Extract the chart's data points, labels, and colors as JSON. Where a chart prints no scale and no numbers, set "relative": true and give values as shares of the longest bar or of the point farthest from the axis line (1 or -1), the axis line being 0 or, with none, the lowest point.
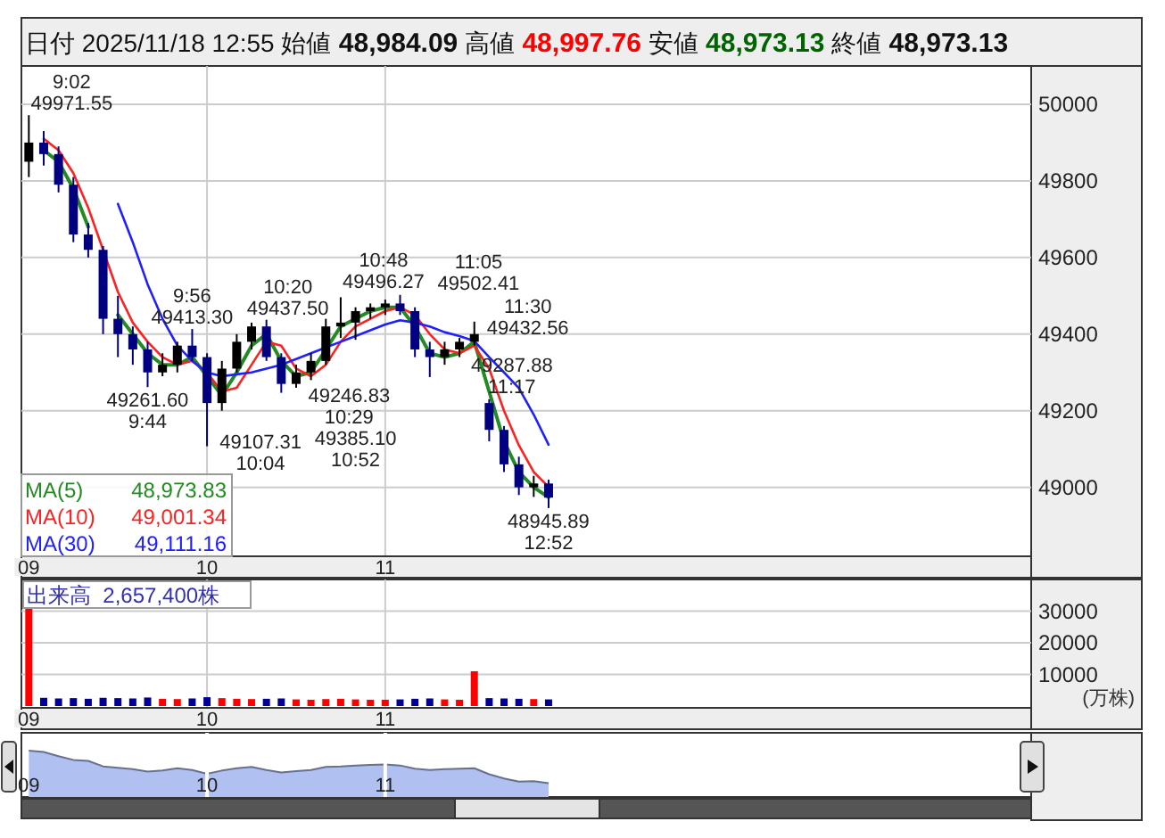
{
  "chart_data": [
    {
      "type": "candlestick",
      "title": "日付 2025/11/18 12:55 始値 48,984.09 高値 48,997.76 安値 48,973.13 終値 48,973.13",
      "categories": [
        "09",
        null,
        null,
        null,
        null,
        null,
        null,
        null,
        null,
        null,
        null,
        null,
        "10",
        null,
        null,
        null,
        null,
        null,
        null,
        null,
        null,
        null,
        null,
        null,
        "11",
        null,
        null,
        null,
        null,
        null,
        null,
        null,
        null,
        null,
        null,
        null,
        null,
        null,
        null,
        null,
        null,
        null,
        null,
        null,
        null,
        null,
        null,
        null,
        null,
        null,
        null,
        null,
        null,
        null,
        null,
        null,
        null,
        null,
        null,
        null,
        null,
        null,
        null,
        null,
        null,
        null,
        null,
        null
      ],
      "ohlc": [
        [
          49850,
          49971.55,
          49810,
          49900
        ],
        [
          49900,
          49930,
          49840,
          49870
        ],
        [
          49870,
          49890,
          49770,
          49790
        ],
        [
          49790,
          49810,
          49640,
          49660
        ],
        [
          49660,
          49690,
          49600,
          49620
        ],
        [
          49620,
          49630,
          49400,
          49440
        ],
        [
          49440,
          49500,
          49340,
          49400
        ],
        [
          49400,
          49420,
          49320,
          49360
        ],
        [
          49360,
          49380,
          49261.6,
          49300
        ],
        [
          49300,
          49350,
          49290,
          49320
        ],
        [
          49320,
          49380,
          49300,
          49370
        ],
        [
          49370,
          49413.3,
          49330,
          49340
        ],
        [
          49340,
          49350,
          49107.31,
          49220
        ],
        [
          49220,
          49330,
          49200,
          49310
        ],
        [
          49310,
          49400,
          49300,
          49380
        ],
        [
          49380,
          49430,
          49360,
          49420
        ],
        [
          49420,
          49437.5,
          49330,
          49340
        ],
        [
          49340,
          49350,
          49246.83,
          49270
        ],
        [
          49270,
          49320,
          49260,
          49300
        ],
        [
          49300,
          49350,
          49280,
          49330
        ],
        [
          49330,
          49440,
          49320,
          49420
        ],
        [
          49420,
          49496.27,
          49390,
          49430
        ],
        [
          49430,
          49470,
          49385.1,
          49460
        ],
        [
          49460,
          49480,
          49440,
          49470
        ],
        [
          49470,
          49490,
          49450,
          49480
        ],
        [
          49480,
          49502.41,
          49450,
          49460
        ],
        [
          49460,
          49470,
          49340,
          49360
        ],
        [
          49360,
          49380,
          49287.88,
          49340
        ],
        [
          49340,
          49380,
          49320,
          49360
        ],
        [
          49360,
          49390,
          49340,
          49380
        ],
        [
          49380,
          49432.56,
          49370,
          49400
        ],
        [
          49220,
          49230,
          49120,
          49150
        ],
        [
          49150,
          49160,
          49040,
          49060
        ],
        [
          49060,
          49080,
          48980,
          49000
        ],
        [
          49000,
          49030,
          48975,
          49010
        ],
        [
          49010,
          49020,
          48945.89,
          48973.13
        ],
        null,
        null,
        null,
        null,
        null,
        null,
        null,
        null,
        null,
        null,
        null,
        null,
        null,
        null,
        null,
        null,
        null,
        null,
        null,
        null,
        null,
        null,
        null,
        null,
        null,
        null,
        null,
        null,
        null,
        null,
        null,
        null
      ],
      "series": [
        {
          "type": "line",
          "name": "MA(5)  48,973.83",
          "color": "#228b22",
          "values": [
            null,
            49880,
            49850,
            49780,
            49680,
            null,
            49450,
            49400,
            49350,
            49320,
            49320,
            49340,
            49290,
            49240,
            49300,
            49370,
            49400,
            49330,
            49290,
            49300,
            49360,
            49420,
            49440,
            49460,
            49470,
            49470,
            49420,
            49350,
            49340,
            49350,
            49380,
            49250,
            49120,
            49040,
            49000,
            48973.83,
            null,
            null,
            null,
            null,
            null,
            null,
            null,
            null,
            null,
            null,
            null,
            null,
            null,
            null,
            null,
            null,
            null,
            null,
            null,
            null,
            null,
            null,
            null,
            null,
            null,
            null,
            null,
            null,
            null,
            null,
            null,
            null
          ]
        },
        {
          "type": "line",
          "name": "MA(10)  49,001.34",
          "color": "#ff2020",
          "values": [
            null,
            49910,
            49880,
            49820,
            49730,
            49620,
            49510,
            49430,
            49380,
            49340,
            49320,
            49330,
            49300,
            49250,
            49260,
            49320,
            49380,
            49370,
            49310,
            49290,
            49320,
            49380,
            49420,
            49440,
            49460,
            49470,
            49450,
            49400,
            49360,
            49350,
            49370,
            49310,
            49200,
            49110,
            49040,
            49001.34,
            null,
            null,
            null,
            null,
            null,
            null,
            null,
            null,
            null,
            null,
            null,
            null,
            null,
            null,
            null,
            null,
            null,
            null,
            null,
            null,
            null,
            null,
            null,
            null,
            null,
            null,
            null,
            null,
            null,
            null,
            null,
            null
          ]
        },
        {
          "type": "line",
          "name": "MA(30)  49,111.16",
          "color": "#2020ff",
          "values": [
            null,
            null,
            null,
            null,
            null,
            null,
            49740,
            49640,
            49530,
            49440,
            49370,
            49330,
            49300,
            49290,
            49295,
            49300,
            49310,
            49320,
            49335,
            49350,
            49365,
            49380,
            49395,
            49410,
            49425,
            49436,
            49430,
            49420,
            49405,
            49395,
            49382,
            49340,
            49300,
            49259,
            49190,
            49111.16,
            null,
            null,
            null,
            null,
            null,
            null,
            null,
            null,
            null,
            null,
            null,
            null,
            null,
            null,
            null,
            null,
            null,
            null,
            null,
            null,
            null,
            null,
            null,
            null,
            null,
            null,
            null,
            null,
            null,
            null,
            null,
            null
          ]
        }
      ],
      "ylim": [
        48820,
        50100
      ],
      "yticks": [
        49000,
        49200,
        49400,
        49600,
        49800,
        50000
      ],
      "grid": true,
      "annotations": [
        "9:02 49971.55",
        "49261.60 9:44",
        "9:56 49413.30",
        "49107.31 10:04",
        "10:20 49437.50",
        "49246.83 10:29",
        "10:48 49496.27",
        "49385.10 10:52",
        "11:05 49502.41",
        "49287.88 11:17",
        "11:30 49432.56",
        "48945.89 12:52"
      ]
    },
    {
      "type": "bar",
      "title": "出来高  2,657,400株",
      "ylabel": "(万株)",
      "categories": [
        "09",
        null,
        null,
        null,
        null,
        null,
        null,
        null,
        null,
        null,
        null,
        null,
        "10",
        null,
        null,
        null,
        null,
        null,
        null,
        null,
        null,
        null,
        null,
        null,
        "11",
        null,
        null,
        null,
        null,
        null,
        null,
        null,
        null,
        null,
        null,
        null,
        null,
        null,
        null,
        null,
        null,
        null,
        null,
        null,
        null,
        null,
        null,
        null,
        null,
        null,
        null,
        null,
        null,
        null,
        null,
        null,
        null,
        null,
        null,
        null,
        null,
        null,
        null,
        null,
        null,
        null,
        null,
        null
      ],
      "values": [
        31000,
        2600,
        2400,
        2500,
        2300,
        2600,
        2500,
        2400,
        2700,
        2300,
        2200,
        2400,
        2800,
        2500,
        2300,
        2200,
        2300,
        2400,
        2100,
        2000,
        2200,
        2300,
        2100,
        2000,
        2000,
        2100,
        2300,
        2400,
        2100,
        2000,
        11000,
        2500,
        2400,
        2300,
        2200,
        2100,
        null,
        null,
        null,
        null,
        null,
        null,
        null,
        null,
        null,
        null,
        null,
        null,
        null,
        null,
        null,
        null,
        null,
        null,
        null,
        null,
        null,
        null,
        null,
        null,
        null,
        null,
        null,
        null,
        null,
        null,
        null,
        null
      ],
      "colors": [
        "#ff0000",
        "#000099",
        "#000099",
        "#000099",
        "#000099",
        "#000099",
        "#000099",
        "#000099",
        "#000099",
        "#ff0000",
        "#ff0000",
        "#000099",
        "#000099",
        "#ff0000",
        "#ff0000",
        "#ff0000",
        "#000099",
        "#000099",
        "#ff0000",
        "#ff0000",
        "#ff0000",
        "#ff0000",
        "#ff0000",
        "#ff0000",
        "#ff0000",
        "#000099",
        "#000099",
        "#000099",
        "#ff0000",
        "#ff0000",
        "#ff0000",
        "#000099",
        "#000099",
        "#000099",
        "#ff0000",
        "#000099",
        null,
        null,
        null,
        null,
        null,
        null,
        null,
        null,
        null,
        null,
        null,
        null,
        null,
        null,
        null,
        null,
        null,
        null,
        null,
        null,
        null,
        null,
        null,
        null,
        null,
        null,
        null,
        null,
        null,
        null,
        null,
        null
      ],
      "ylim": [
        0,
        40000
      ],
      "yticks": [
        10000,
        20000,
        30000
      ],
      "grid": true
    },
    {
      "type": "area",
      "relative": true,
      "color": "#b0c0f0",
      "grid": "x",
      "categories": [
        "09",
        null,
        null,
        null,
        null,
        null,
        null,
        null,
        null,
        null,
        null,
        null,
        "10",
        null,
        null,
        null,
        null,
        null,
        null,
        null,
        null,
        null,
        null,
        null,
        "11",
        null,
        null,
        null,
        null,
        null,
        null,
        null,
        null,
        null,
        null,
        null,
        null,
        null,
        null,
        null,
        null,
        null,
        null,
        null,
        null,
        null,
        null,
        null,
        null,
        null,
        null,
        null,
        null,
        null,
        null,
        null,
        null,
        null,
        null,
        null,
        null,
        null,
        null,
        null,
        null,
        null,
        null,
        null
      ],
      "values": [
        1,
        0.97,
        0.88,
        0.8,
        0.78,
        0.66,
        0.63,
        0.6,
        0.55,
        0.57,
        0.62,
        0.58,
        0.5,
        0.57,
        0.62,
        0.65,
        0.58,
        0.53,
        0.56,
        0.58,
        0.65,
        0.66,
        0.68,
        0.69,
        0.7,
        0.68,
        0.61,
        0.58,
        0.6,
        0.61,
        0.62,
        0.49,
        0.4,
        0.33,
        0.34,
        0.3,
        null,
        null,
        null,
        null,
        null,
        null,
        null,
        null,
        null,
        null,
        null,
        null,
        null,
        null,
        null,
        null,
        null,
        null,
        null,
        null,
        null,
        null,
        null,
        null,
        null,
        null,
        null,
        null,
        null,
        null,
        null,
        null
      ]
    }
  ]
}
